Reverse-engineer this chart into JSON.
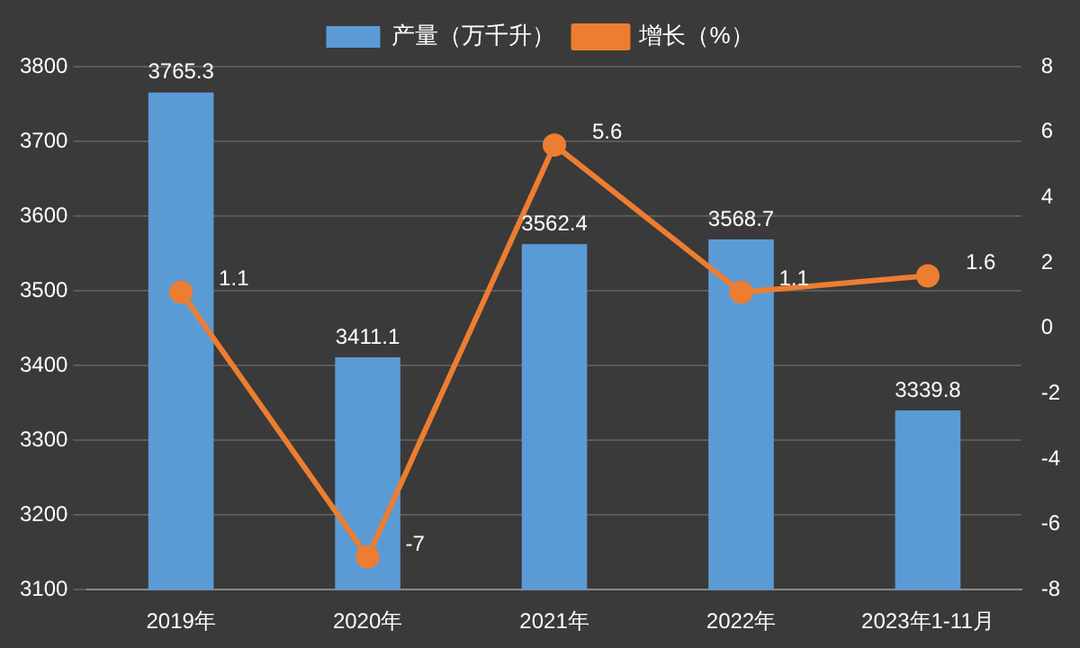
{
  "chart_data": {
    "type": "bar",
    "categories": [
      "2019年",
      "2020年",
      "2021年",
      "2022年",
      "2023年1-11月"
    ],
    "series": [
      {
        "name": "产量（万千升）",
        "color": "#5b9bd5",
        "values": [
          3765.3,
          3411.1,
          3562.4,
          3568.7,
          3339.8
        ]
      },
      {
        "name": "增长（%）",
        "type": "line",
        "axis": "y2",
        "color": "#ed7d31",
        "values": [
          1.1,
          -7,
          5.6,
          1.1,
          1.6
        ]
      }
    ],
    "ylim": [
      3100,
      3800
    ],
    "yticks": [
      3100,
      3200,
      3300,
      3400,
      3500,
      3600,
      3700,
      3800
    ],
    "y2lim": [
      -8,
      8
    ],
    "y2ticks": [
      -8,
      -6,
      -4,
      -2,
      0,
      2,
      4,
      6,
      8
    ],
    "grid": "y",
    "legend": "top",
    "marker": "circle",
    "line_style": "solid",
    "data_labels": true
  }
}
